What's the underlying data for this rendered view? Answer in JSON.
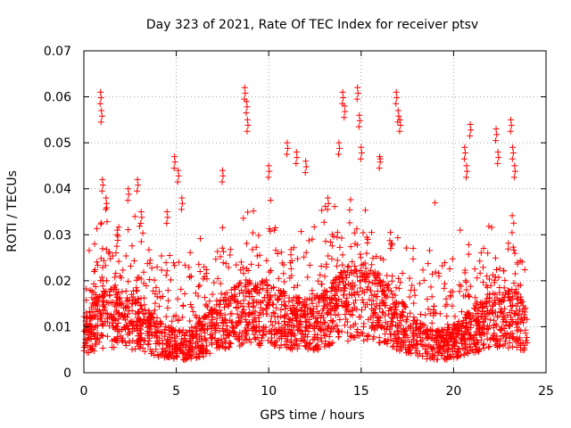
{
  "chart_data": {
    "type": "scatter",
    "title": "Day 323 of 2021, Rate Of TEC Index for receiver ptsv",
    "xlabel": "GPS time / hours",
    "ylabel": "ROTI / TECUs",
    "xlim": [
      0,
      25
    ],
    "ylim": [
      0,
      0.07
    ],
    "x_ticks": [
      "0",
      "5",
      "10",
      "15",
      "20",
      "25"
    ],
    "y_ticks": [
      "0",
      "0.01",
      "0.02",
      "0.03",
      "0.04",
      "0.05",
      "0.06",
      "0.07"
    ],
    "grid": true,
    "marker": "+",
    "color": "#ff0000",
    "series": [
      {
        "points_sample": [
          [
            0.3,
            0.01
          ],
          [
            0.6,
            0.015
          ],
          [
            0.9,
            0.061
          ],
          [
            0.95,
            0.057
          ],
          [
            1.0,
            0.042
          ],
          [
            1.2,
            0.038
          ],
          [
            1.8,
            0.03
          ],
          [
            2.4,
            0.04
          ],
          [
            2.9,
            0.042
          ],
          [
            3.1,
            0.035
          ],
          [
            4.5,
            0.035
          ],
          [
            4.9,
            0.047
          ],
          [
            5.1,
            0.044
          ],
          [
            5.3,
            0.038
          ],
          [
            7.5,
            0.044
          ],
          [
            8.7,
            0.062
          ],
          [
            8.8,
            0.059
          ],
          [
            8.85,
            0.055
          ],
          [
            10.0,
            0.045
          ],
          [
            11.0,
            0.05
          ],
          [
            11.5,
            0.048
          ],
          [
            12.0,
            0.046
          ],
          [
            13.2,
            0.038
          ],
          [
            13.8,
            0.05
          ],
          [
            14.0,
            0.061
          ],
          [
            14.1,
            0.058
          ],
          [
            14.8,
            0.062
          ],
          [
            14.9,
            0.056
          ],
          [
            15.0,
            0.049
          ],
          [
            16.0,
            0.047
          ],
          [
            16.9,
            0.061
          ],
          [
            17.0,
            0.057
          ],
          [
            17.1,
            0.055
          ],
          [
            20.6,
            0.049
          ],
          [
            20.7,
            0.045
          ],
          [
            20.9,
            0.054
          ],
          [
            22.3,
            0.053
          ],
          [
            22.4,
            0.048
          ],
          [
            23.1,
            0.055
          ],
          [
            23.2,
            0.049
          ],
          [
            23.3,
            0.045
          ]
        ]
      }
    ]
  }
}
